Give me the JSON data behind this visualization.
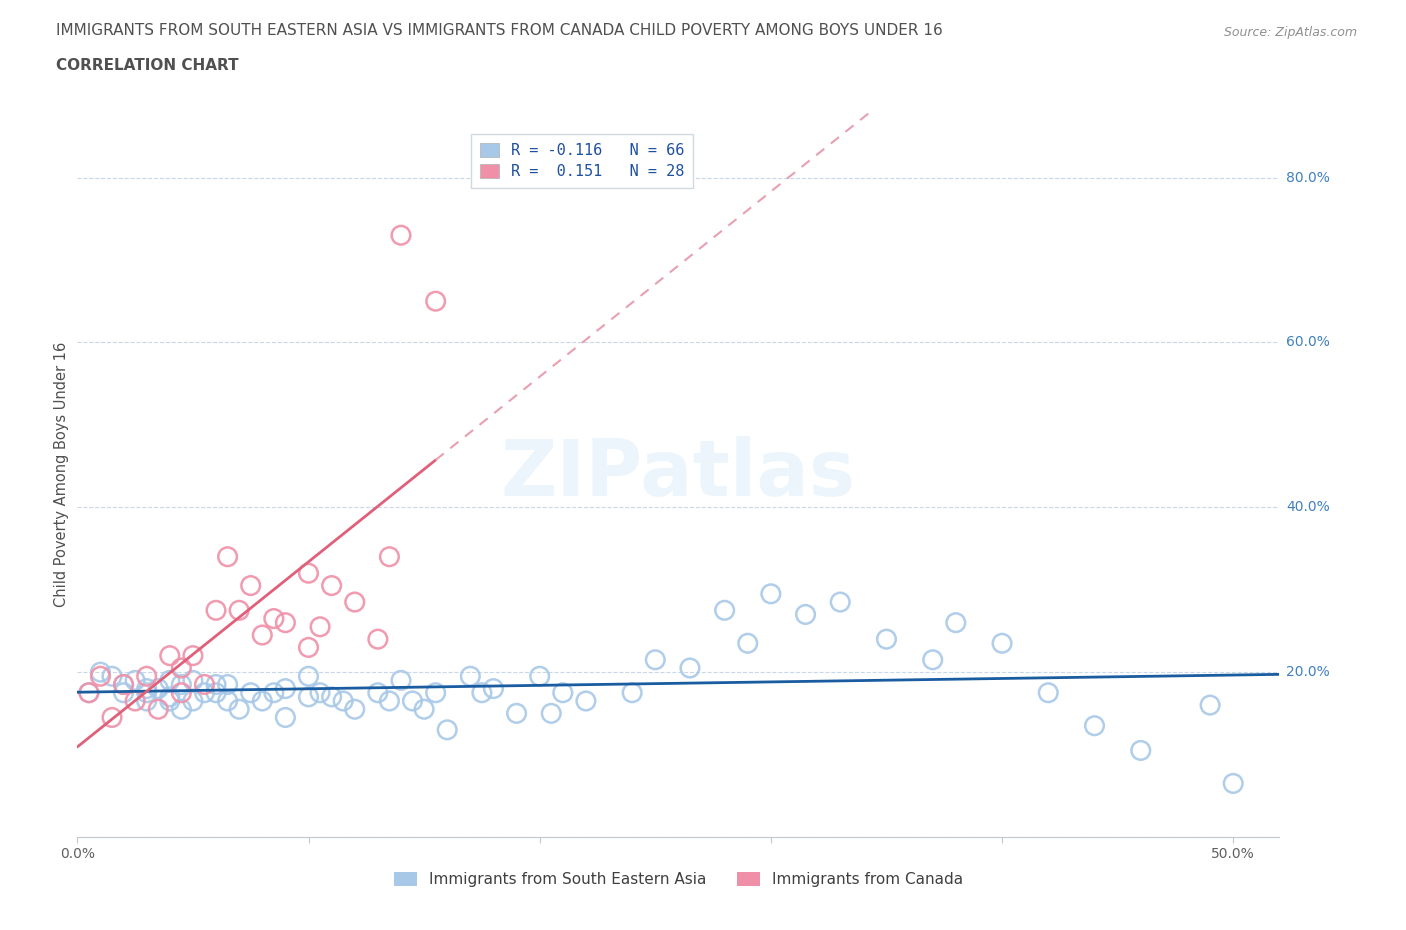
{
  "title_line1": "IMMIGRANTS FROM SOUTH EASTERN ASIA VS IMMIGRANTS FROM CANADA CHILD POVERTY AMONG BOYS UNDER 16",
  "title_line2": "CORRELATION CHART",
  "source": "Source: ZipAtlas.com",
  "ylabel": "Child Poverty Among Boys Under 16",
  "xlim": [
    0.0,
    0.52
  ],
  "ylim": [
    0.0,
    0.88
  ],
  "watermark": "ZIPatlas",
  "blue_color": "#a8c8e8",
  "pink_color": "#f090a8",
  "blue_line_color": "#1a5ca0",
  "pink_line_color": "#e0607a",
  "pink_dashed_color": "#e8a0b0",
  "R_blue": -0.116,
  "N_blue": 66,
  "R_pink": 0.151,
  "N_pink": 28,
  "legend_label_blue": "Immigrants from South Eastern Asia",
  "legend_label_pink": "Immigrants from Canada",
  "blue_scatter_x": [
    0.005,
    0.01,
    0.015,
    0.02,
    0.02,
    0.025,
    0.03,
    0.03,
    0.03,
    0.035,
    0.04,
    0.04,
    0.04,
    0.045,
    0.045,
    0.05,
    0.05,
    0.055,
    0.06,
    0.06,
    0.065,
    0.065,
    0.07,
    0.075,
    0.08,
    0.085,
    0.09,
    0.09,
    0.1,
    0.1,
    0.105,
    0.11,
    0.115,
    0.12,
    0.13,
    0.135,
    0.14,
    0.145,
    0.15,
    0.155,
    0.16,
    0.17,
    0.175,
    0.18,
    0.19,
    0.2,
    0.205,
    0.21,
    0.22,
    0.24,
    0.25,
    0.265,
    0.28,
    0.29,
    0.3,
    0.315,
    0.33,
    0.35,
    0.37,
    0.38,
    0.4,
    0.42,
    0.44,
    0.46,
    0.49,
    0.5
  ],
  "blue_scatter_y": [
    0.175,
    0.2,
    0.195,
    0.185,
    0.175,
    0.19,
    0.18,
    0.175,
    0.165,
    0.18,
    0.17,
    0.165,
    0.19,
    0.155,
    0.185,
    0.19,
    0.165,
    0.175,
    0.175,
    0.185,
    0.165,
    0.185,
    0.155,
    0.175,
    0.165,
    0.175,
    0.18,
    0.145,
    0.17,
    0.195,
    0.175,
    0.17,
    0.165,
    0.155,
    0.175,
    0.165,
    0.19,
    0.165,
    0.155,
    0.175,
    0.13,
    0.195,
    0.175,
    0.18,
    0.15,
    0.195,
    0.15,
    0.175,
    0.165,
    0.175,
    0.215,
    0.205,
    0.275,
    0.235,
    0.295,
    0.27,
    0.285,
    0.24,
    0.215,
    0.26,
    0.235,
    0.175,
    0.135,
    0.105,
    0.16,
    0.065
  ],
  "pink_scatter_x": [
    0.005,
    0.01,
    0.015,
    0.02,
    0.025,
    0.03,
    0.035,
    0.04,
    0.045,
    0.045,
    0.05,
    0.055,
    0.06,
    0.065,
    0.07,
    0.075,
    0.08,
    0.085,
    0.09,
    0.1,
    0.1,
    0.105,
    0.11,
    0.12,
    0.13,
    0.135,
    0.14,
    0.155
  ],
  "pink_scatter_y": [
    0.175,
    0.195,
    0.145,
    0.185,
    0.165,
    0.195,
    0.155,
    0.22,
    0.205,
    0.175,
    0.22,
    0.185,
    0.275,
    0.34,
    0.275,
    0.305,
    0.245,
    0.265,
    0.26,
    0.23,
    0.32,
    0.255,
    0.305,
    0.285,
    0.24,
    0.34,
    0.73,
    0.65
  ],
  "grid_color": "#c8d8e8",
  "bg_color": "#ffffff",
  "title_color": "#505050",
  "source_color": "#909090"
}
